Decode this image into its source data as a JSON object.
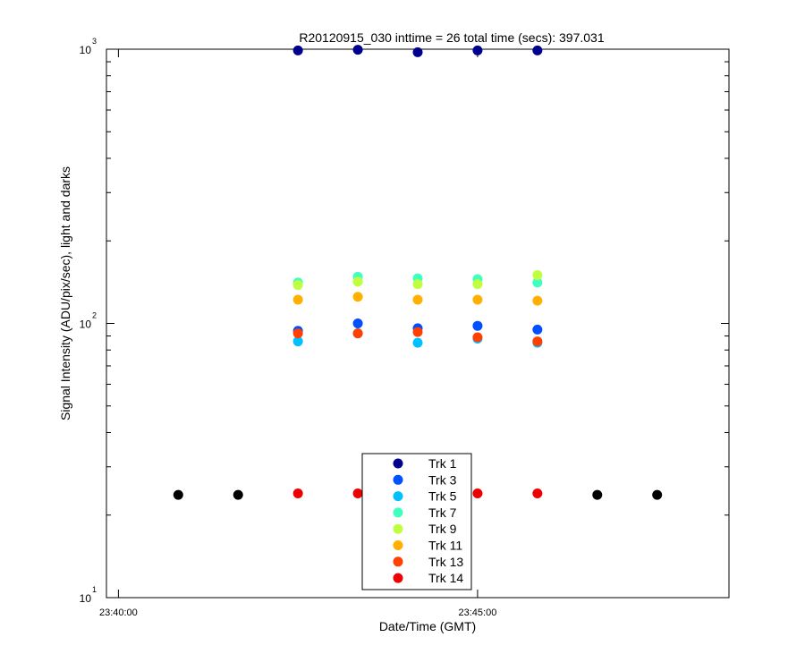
{
  "chart_data": {
    "type": "scatter",
    "title": "R20120915_030 inttime = 26 total time (secs): 397.031",
    "xlabel": "Date/Time (GMT)",
    "ylabel": "Signal Intensity (ADU/pix/sec), light and darks",
    "yscale": "log",
    "ylim": [
      10,
      1000
    ],
    "xlim": [
      "23:39:50",
      "23:48:30"
    ],
    "xticks": [
      "23:40:00",
      "23:45:00"
    ],
    "yticks": [
      {
        "value": 10,
        "base": "10",
        "exp": "1"
      },
      {
        "value": 100,
        "base": "10",
        "exp": "2"
      },
      {
        "value": 1000,
        "base": "10",
        "exp": "3"
      }
    ],
    "grid": false,
    "legend_position": "bottom-center",
    "x": [
      "23:40:50",
      "23:41:40",
      "23:42:30",
      "23:43:20",
      "23:44:10",
      "23:45:00",
      "23:45:50",
      "23:46:40",
      "23:47:30"
    ],
    "series": [
      {
        "name": "Trk 1",
        "color": "#00008f",
        "values": [
          null,
          null,
          990,
          995,
          975,
          990,
          990,
          null,
          null
        ]
      },
      {
        "name": "Trk 3",
        "color": "#0050ff",
        "values": [
          null,
          null,
          94,
          100,
          96,
          98,
          95,
          null,
          null
        ]
      },
      {
        "name": "Trk 5",
        "color": "#00c0ff",
        "values": [
          null,
          null,
          86,
          92,
          85,
          88,
          85,
          null,
          null
        ]
      },
      {
        "name": "Trk 7",
        "color": "#40ffbf",
        "values": [
          null,
          null,
          141,
          148,
          146,
          145,
          141,
          null,
          null
        ]
      },
      {
        "name": "Trk 9",
        "color": "#bfff40",
        "values": [
          null,
          null,
          138,
          142,
          139,
          139,
          150,
          null,
          null
        ]
      },
      {
        "name": "Trk 11",
        "color": "#ffb000",
        "values": [
          null,
          null,
          122,
          125,
          122,
          122,
          121,
          null,
          null
        ]
      },
      {
        "name": "Trk 13",
        "color": "#ff4000",
        "values": [
          null,
          null,
          92,
          92,
          93,
          89,
          86,
          null,
          null
        ]
      },
      {
        "name": "Trk 14",
        "color": "#ef0000",
        "values": [
          null,
          null,
          24,
          24,
          24,
          24,
          24,
          null,
          null
        ]
      },
      {
        "name": "",
        "color": "#000000",
        "values": [
          23.7,
          23.7,
          null,
          null,
          null,
          null,
          null,
          23.7,
          23.7
        ]
      }
    ]
  }
}
